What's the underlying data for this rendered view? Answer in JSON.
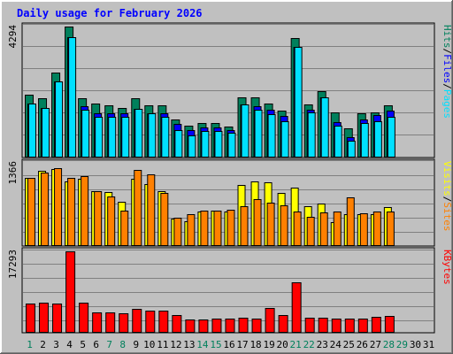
{
  "chart_data": {
    "type": "bar",
    "title": "Daily usage for February 2026",
    "categories": [
      "1",
      "2",
      "3",
      "4",
      "5",
      "6",
      "7",
      "8",
      "9",
      "10",
      "11",
      "12",
      "13",
      "14",
      "15",
      "16",
      "17",
      "18",
      "19",
      "20",
      "21",
      "22",
      "23",
      "24",
      "25",
      "26",
      "27",
      "28",
      "29",
      "30",
      "31"
    ],
    "weekend_days": [
      1,
      7,
      8,
      14,
      15,
      21,
      22,
      28,
      29
    ],
    "panels": [
      {
        "name": "hits-files-pages",
        "max_label": "4294",
        "ymax": 4294,
        "series": [
          {
            "name": "Hits",
            "color": "#00805c",
            "values": [
              2050,
              1930,
              2770,
              4294,
              1920,
              1760,
              1690,
              1610,
              1940,
              1680,
              1690,
              1240,
              1010,
              1120,
              1110,
              1000,
              1970,
              1950,
              1760,
              1520,
              3920,
              1710,
              2170,
              1450,
              940,
              1440,
              1460,
              1690,
              0,
              0,
              0
            ]
          },
          {
            "name": "Files",
            "color": "#0000ff",
            "values": [
              1740,
              1610,
              2480,
              3950,
              1670,
              1420,
              1430,
              1420,
              1580,
              1420,
              1430,
              1090,
              890,
              950,
              950,
              890,
              1720,
              1660,
              1550,
              1350,
              3620,
              1540,
              1960,
              1130,
              650,
              1240,
              1370,
              1530,
              0,
              0,
              0
            ]
          },
          {
            "name": "Pages",
            "color": "#00e0ff",
            "values": [
              1740,
              1610,
              2480,
              3950,
              1540,
              1300,
              1310,
              1300,
              1580,
              1420,
              1300,
              880,
              700,
              840,
              840,
              780,
              1720,
              1560,
              1410,
              1170,
              3620,
              1450,
              1960,
              1030,
              540,
              1120,
              1170,
              1310,
              0,
              0,
              0
            ]
          }
        ]
      },
      {
        "name": "visits-sites",
        "max_label": "1366",
        "ymax": 1366,
        "series": [
          {
            "name": "Visits",
            "color": "#ffff00",
            "values": [
              1120,
              1240,
              1260,
              1060,
              1100,
              900,
              880,
              720,
              1100,
              1020,
              900,
              440,
              390,
              560,
              580,
              560,
              1000,
              1060,
              1040,
              870,
              950,
              640,
              690,
              380,
              510,
              510,
              510,
              630,
              0,
              0,
              0
            ]
          },
          {
            "name": "Sites",
            "color": "#ff8000",
            "values": [
              1110,
              1210,
              1280,
              1120,
              1140,
              900,
              810,
              580,
              1250,
              1170,
              870,
              460,
              510,
              570,
              580,
              590,
              640,
              770,
              710,
              660,
              560,
              470,
              540,
              560,
              790,
              530,
              560,
              560,
              0,
              0,
              0
            ]
          }
        ]
      },
      {
        "name": "kbytes",
        "max_label": "17293",
        "ymax": 17293,
        "series": [
          {
            "name": "KBytes",
            "color": "#ff0000",
            "values": [
              6000,
              6200,
              6100,
              17293,
              6200,
              4200,
              4100,
              4000,
              4900,
              4500,
              4500,
              3700,
              2600,
              2600,
              2800,
              2900,
              3000,
              2900,
              5100,
              3700,
              10600,
              3000,
              3000,
              2800,
              2800,
              2800,
              3300,
              3500,
              0,
              0,
              0
            ]
          }
        ]
      }
    ],
    "legend": [
      {
        "panel": "hits-files-pages",
        "items": [
          {
            "label": "Pages",
            "color": "#00e0ff"
          },
          {
            "label": "Files",
            "color": "#0000ff"
          },
          {
            "label": "Hits",
            "color": "#00805c"
          }
        ]
      },
      {
        "panel": "visits-sites",
        "items": [
          {
            "label": "Sites",
            "color": "#ff8000"
          },
          {
            "label": "Visits",
            "color": "#ffff00"
          }
        ]
      },
      {
        "panel": "kbytes",
        "items": [
          {
            "label": "KBytes",
            "color": "#ff0000"
          }
        ]
      }
    ],
    "colors": {
      "background": "#c0c0c0",
      "plot_background": "#c0c0c0",
      "grid": "#808080",
      "title": "#0000ff",
      "weekday_label": "#000000",
      "weekend_label": "#00805c",
      "separator": "#000000"
    },
    "grid": true,
    "legend_position": "right-vertical"
  }
}
